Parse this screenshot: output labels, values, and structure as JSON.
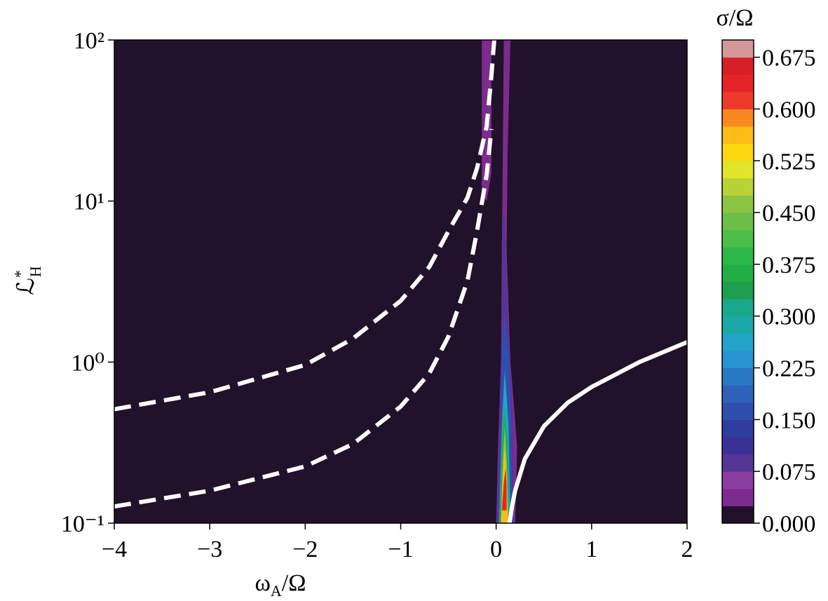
{
  "chart_data": {
    "type": "contourf",
    "xlabel": {
      "symbol": "ω",
      "sub": "A",
      "rest": "/Ω"
    },
    "ylabel": {
      "symbol": "ℒ",
      "sup": "*",
      "sub": "H"
    },
    "xlim": [
      -4,
      2
    ],
    "xticks": [
      {
        "value": -4,
        "label": "−4"
      },
      {
        "value": -3,
        "label": "−3"
      },
      {
        "value": -2,
        "label": "−2"
      },
      {
        "value": -1,
        "label": "−1"
      },
      0,
      1,
      2
    ],
    "ylim": [
      0.1,
      100
    ],
    "ylog": true,
    "yticks": [
      {
        "value": 0.1,
        "label": "10⁻¹"
      },
      {
        "value": 1,
        "label": "10⁰"
      },
      {
        "value": 10,
        "label": "10¹"
      },
      {
        "value": 100,
        "label": "10²"
      }
    ],
    "colorbar": {
      "label": "σ/Ω",
      "lim": [
        0,
        0.7
      ],
      "levels": [
        0,
        0.025,
        0.05,
        0.075,
        0.1,
        0.125,
        0.15,
        0.175,
        0.2,
        0.225,
        0.25,
        0.275,
        0.3,
        0.325,
        0.35,
        0.375,
        0.4,
        0.425,
        0.45,
        0.475,
        0.5,
        0.525,
        0.55,
        0.575,
        0.6,
        0.625,
        0.65,
        0.675,
        0.7
      ],
      "colors": [
        "#22112b",
        "#7d2b8e",
        "#8a3c9f",
        "#553596",
        "#3a3197",
        "#2e3d9e",
        "#2f4fae",
        "#2e62b8",
        "#2a79c4",
        "#2793d1",
        "#21a4c8",
        "#1aa9a6",
        "#1aa88a",
        "#1f9e4f",
        "#22ae45",
        "#2db84a",
        "#4cbf4a",
        "#6cc04a",
        "#8cc443",
        "#b9d238",
        "#e2e52a",
        "#fbd80f",
        "#fdbc16",
        "#f7891f",
        "#ee3a2b",
        "#e5242a",
        "#d61f26",
        "#d49898"
      ],
      "ticks": [
        {
          "value": 0,
          "label": "0.000"
        },
        {
          "value": 0.075,
          "label": "0.075"
        },
        {
          "value": 0.15,
          "label": "0.150"
        },
        {
          "value": 0.225,
          "label": "0.225"
        },
        {
          "value": 0.3,
          "label": "0.300"
        },
        {
          "value": 0.375,
          "label": "0.375"
        },
        {
          "value": 0.45,
          "label": "0.450"
        },
        {
          "value": 0.525,
          "label": "0.525"
        },
        {
          "value": 0.6,
          "label": "0.600"
        },
        {
          "value": 0.675,
          "label": "0.675"
        }
      ]
    },
    "contours": [
      {
        "level": 0.025,
        "x": [
          0,
          0.02,
          0.05,
          0.06,
          0.07,
          0.08,
          0.15,
          0.12,
          0.11,
          0.15,
          0.22,
          0.2
        ],
        "y": [
          0.1,
          0.3,
          1,
          5,
          20,
          100,
          100,
          20,
          5,
          1,
          0.3,
          0.1
        ]
      },
      {
        "level": 0.025,
        "x": [
          -0.15,
          -0.05,
          -0.05,
          -0.1,
          -0.15
        ],
        "y": [
          100,
          100,
          15,
          10,
          11
        ]
      },
      {
        "level": 0.075,
        "x": [
          0.01,
          0.04,
          0.06,
          0.07,
          0.09,
          0.12,
          0.17,
          0.19
        ],
        "y": [
          0.1,
          0.5,
          2,
          8,
          8,
          2,
          0.5,
          0.1
        ]
      },
      {
        "level": 0.15,
        "x": [
          0.02,
          0.05,
          0.06,
          0.09,
          0.13,
          0.16,
          0.17
        ],
        "y": [
          0.1,
          0.4,
          1.2,
          2,
          1.2,
          0.4,
          0.1
        ]
      },
      {
        "level": 0.25,
        "x": [
          0.03,
          0.06,
          0.09,
          0.13,
          0.15
        ],
        "y": [
          0.1,
          0.4,
          0.9,
          0.4,
          0.1
        ]
      },
      {
        "level": 0.35,
        "x": [
          0.04,
          0.06,
          0.09,
          0.12,
          0.14
        ],
        "y": [
          0.1,
          0.3,
          0.55,
          0.3,
          0.1
        ]
      },
      {
        "level": 0.45,
        "x": [
          0.05,
          0.07,
          0.09,
          0.11,
          0.13
        ],
        "y": [
          0.1,
          0.25,
          0.4,
          0.25,
          0.1
        ]
      },
      {
        "level": 0.55,
        "x": [
          0.05,
          0.07,
          0.09,
          0.11,
          0.12
        ],
        "y": [
          0.1,
          0.2,
          0.3,
          0.2,
          0.1
        ]
      },
      {
        "level": 0.625,
        "x": [
          0.06,
          0.08,
          0.1,
          0.11,
          0.11
        ],
        "y": [
          0.12,
          0.18,
          0.22,
          0.17,
          0.12
        ]
      }
    ],
    "lines": [
      {
        "style": "dashed",
        "color": "#ffffff",
        "x": [
          -4,
          -3,
          -2,
          -1.5,
          -1,
          -0.7,
          -0.5,
          -0.3,
          -0.2,
          -0.1,
          -0.05,
          -0.02
        ],
        "y": [
          0.51,
          0.65,
          0.96,
          1.4,
          2.4,
          3.9,
          6.5,
          10.5,
          16,
          29,
          60,
          100
        ]
      },
      {
        "style": "dashed",
        "color": "#ffffff",
        "x": [
          -4,
          -3,
          -2,
          -1.5,
          -1,
          -0.7,
          -0.5,
          -0.3,
          -0.2,
          -0.1,
          -0.05
        ],
        "y": [
          0.127,
          0.159,
          0.225,
          0.31,
          0.53,
          0.85,
          1.44,
          3.2,
          6.5,
          14.5,
          28
        ]
      },
      {
        "style": "solid",
        "color": "#ffffff",
        "x": [
          0.14,
          0.17,
          0.2,
          0.3,
          0.5,
          0.75,
          1,
          1.5,
          2
        ],
        "y": [
          0.1,
          0.13,
          0.16,
          0.25,
          0.4,
          0.56,
          0.7,
          1.0,
          1.33
        ]
      }
    ]
  }
}
